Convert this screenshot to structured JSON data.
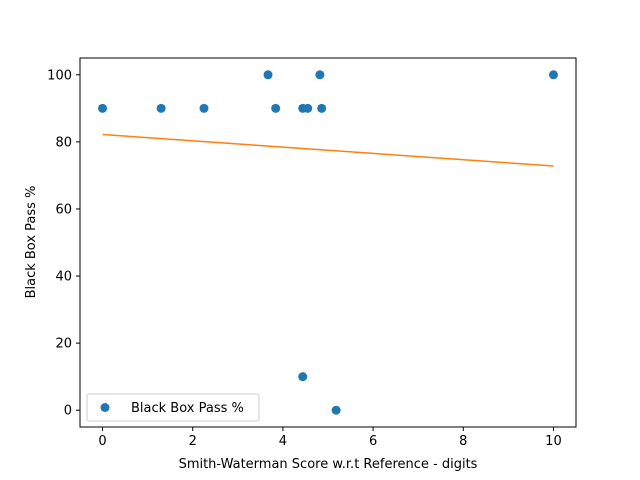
{
  "chart_data": {
    "type": "scatter",
    "xlabel": "Smith-Waterman Score w.r.t Reference - digits",
    "ylabel": "Black Box Pass %",
    "xlim": [
      -0.5,
      10.5
    ],
    "ylim": [
      -5,
      105
    ],
    "xticks": [
      0,
      2,
      4,
      6,
      8,
      10
    ],
    "yticks": [
      0,
      20,
      40,
      60,
      80,
      100
    ],
    "grid": false,
    "legend_position": "lower-left",
    "series": [
      {
        "name": "Black Box Pass %",
        "kind": "points",
        "color": "#1f77b4",
        "points": [
          {
            "x": 0.0,
            "y": 90
          },
          {
            "x": 1.3,
            "y": 90
          },
          {
            "x": 2.25,
            "y": 90
          },
          {
            "x": 3.67,
            "y": 100
          },
          {
            "x": 3.84,
            "y": 90
          },
          {
            "x": 4.44,
            "y": 90
          },
          {
            "x": 4.55,
            "y": 90
          },
          {
            "x": 4.44,
            "y": 10
          },
          {
            "x": 4.82,
            "y": 100
          },
          {
            "x": 4.86,
            "y": 90
          },
          {
            "x": 5.18,
            "y": 0
          },
          {
            "x": 10.0,
            "y": 100
          }
        ]
      },
      {
        "kind": "line",
        "color": "#ff7f0e",
        "points": [
          {
            "x": 0.0,
            "y": 82.2
          },
          {
            "x": 10.0,
            "y": 72.8
          }
        ]
      }
    ]
  }
}
